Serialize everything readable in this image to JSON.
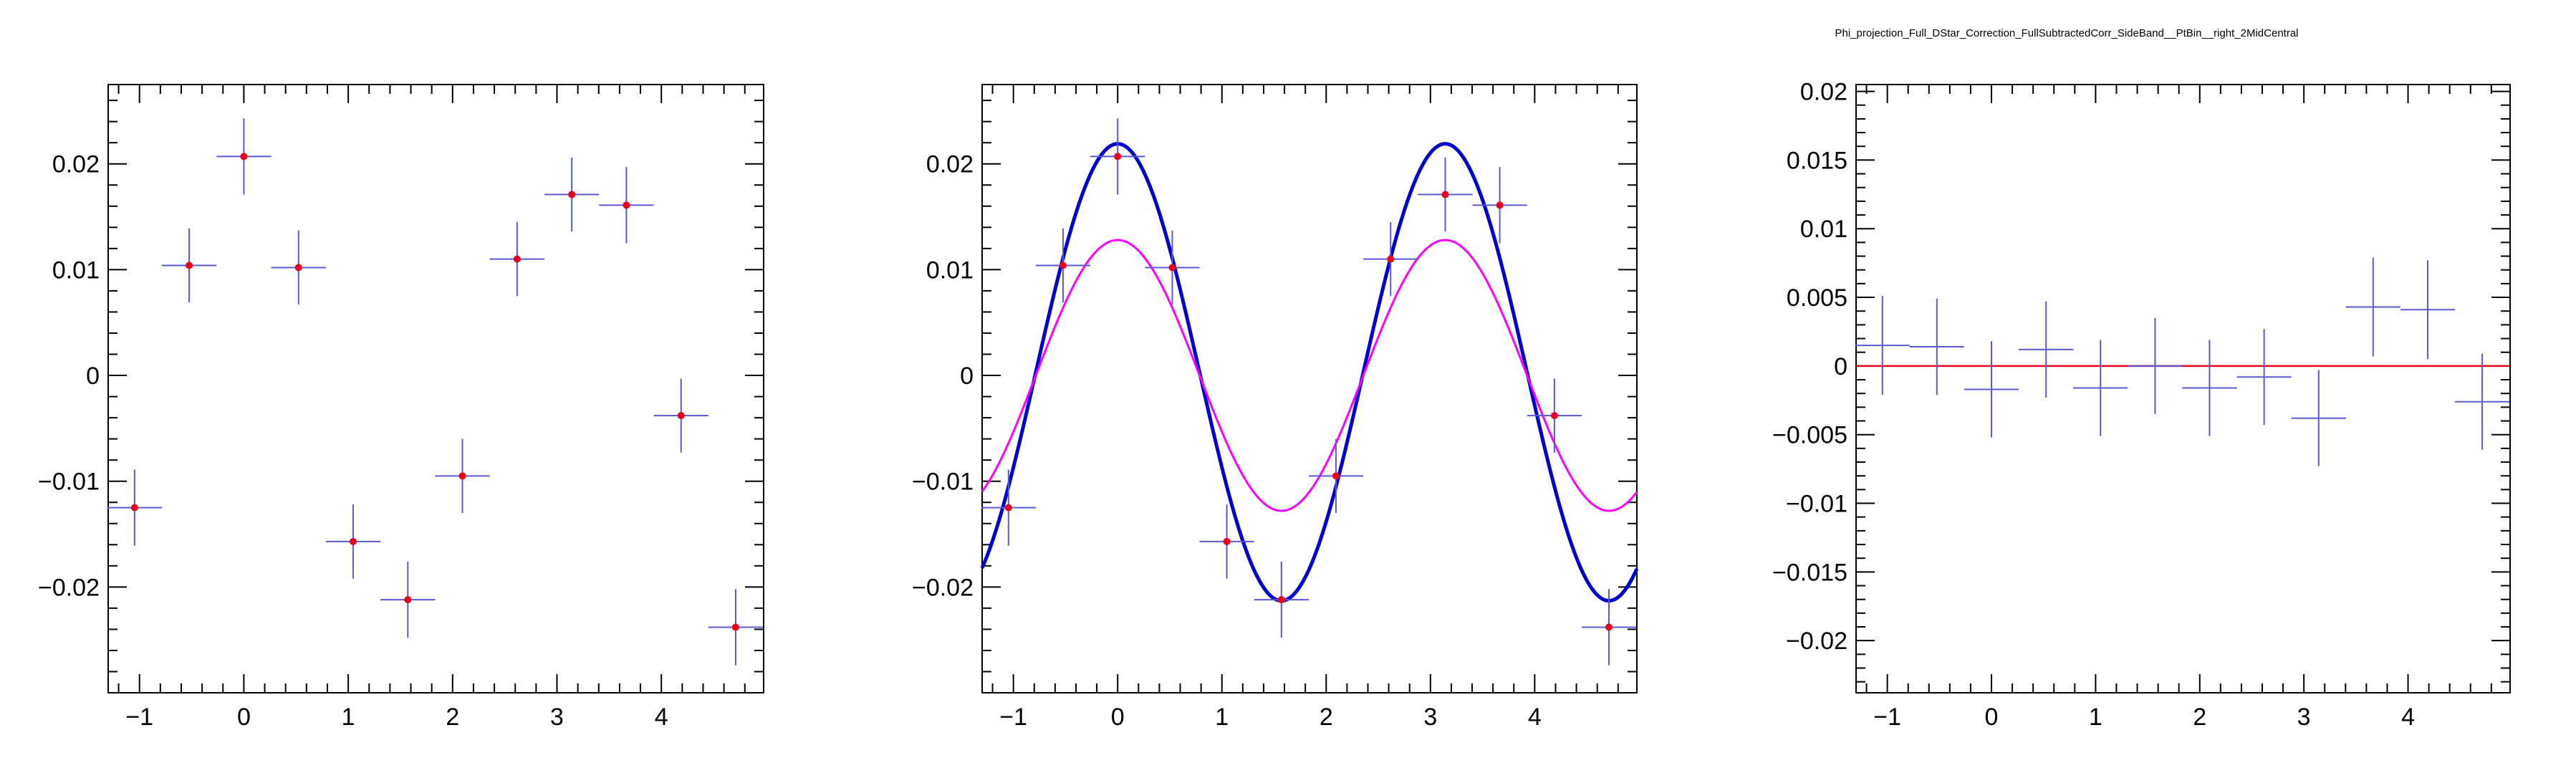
{
  "page": {
    "title": "Phi_projection_Full_DStar_Correction_FullSubtractedCorr_SideBand__PtBin__right_2MidCentral"
  },
  "colors": {
    "frame": "#000000",
    "errorbar": "#5a5ad6",
    "marker": "#e8001c",
    "fit_total": "#0000d0",
    "fit_component": "#ff00ff",
    "residual_line": "#e8001c"
  },
  "chart_data": [
    {
      "type": "scatter",
      "title": "",
      "xlabel": "",
      "ylabel": "",
      "xlim": [
        -1.3,
        4.98
      ],
      "ylim": [
        -0.03,
        0.0275
      ],
      "grid": false,
      "x_ticks": [
        -1,
        0,
        1,
        2,
        3,
        4
      ],
      "x_tick_labels": [
        "−1",
        "0",
        "1",
        "2",
        "3",
        "4"
      ],
      "y_ticks": [
        -0.02,
        -0.01,
        0,
        0.01,
        0.02
      ],
      "y_tick_labels": [
        "−0.02",
        "−0.01",
        "0",
        "0.01",
        "0.02"
      ],
      "x_half_width": 0.262,
      "series": [
        {
          "x": [
            -1.047,
            -0.524,
            0.0,
            0.524,
            1.047,
            1.571,
            2.094,
            2.618,
            3.142,
            3.665,
            4.189,
            4.712
          ],
          "y": [
            -0.0125,
            0.0104,
            0.0207,
            0.0102,
            -0.0157,
            -0.0212,
            -0.0095,
            0.011,
            0.0171,
            0.0161,
            -0.0038,
            -0.0238
          ],
          "yerr": [
            0.0036,
            0.0035,
            0.0036,
            0.0035,
            0.0035,
            0.0036,
            0.0035,
            0.0035,
            0.0035,
            0.0036,
            0.0035,
            0.0036
          ]
        }
      ]
    },
    {
      "type": "scatter",
      "title": "",
      "xlabel": "",
      "ylabel": "",
      "xlim": [
        -1.3,
        4.98
      ],
      "ylim": [
        -0.03,
        0.0275
      ],
      "grid": false,
      "x_ticks": [
        -1,
        0,
        1,
        2,
        3,
        4
      ],
      "x_tick_labels": [
        "−1",
        "0",
        "1",
        "2",
        "3",
        "4"
      ],
      "y_ticks": [
        -0.02,
        -0.01,
        0,
        0.01,
        0.02
      ],
      "y_tick_labels": [
        "−0.02",
        "−0.01",
        "0",
        "0.01",
        "0.02"
      ],
      "x_half_width": 0.262,
      "series": [
        {
          "x": [
            -1.047,
            -0.524,
            0.0,
            0.524,
            1.047,
            1.571,
            2.094,
            2.618,
            3.142,
            3.665,
            4.189,
            4.712
          ],
          "y": [
            -0.0125,
            0.0104,
            0.0207,
            0.0102,
            -0.0157,
            -0.0212,
            -0.0095,
            0.011,
            0.0171,
            0.0161,
            -0.0038,
            -0.0238
          ],
          "yerr": [
            0.0036,
            0.0035,
            0.0036,
            0.0035,
            0.0035,
            0.0036,
            0.0035,
            0.0035,
            0.0035,
            0.0036,
            0.0035,
            0.0036
          ]
        }
      ],
      "curves": [
        {
          "kind": "total_fit",
          "color_key": "fit_total",
          "offset": 0.0003,
          "a1": 0.0,
          "a2": 0.0216
        },
        {
          "kind": "component",
          "color_key": "fit_component",
          "offset": 0.0,
          "a1": 0.0,
          "a2": 0.0128
        }
      ]
    },
    {
      "type": "scatter",
      "title": "Phi_projection_Full_DStar_Correction_FullSubtractedCorr_SideBand__PtBin__right_2MidCentral",
      "xlabel": "",
      "ylabel": "",
      "xlim": [
        -1.3,
        4.98
      ],
      "ylim": [
        -0.0238,
        0.0205
      ],
      "grid": false,
      "x_ticks": [
        -1,
        0,
        1,
        2,
        3,
        4
      ],
      "x_tick_labels": [
        "−1",
        "0",
        "1",
        "2",
        "3",
        "4"
      ],
      "y_ticks": [
        -0.02,
        -0.015,
        -0.01,
        -0.005,
        0,
        0.005,
        0.01,
        0.015,
        0.02
      ],
      "y_tick_labels": [
        "−0.02",
        "−0.015",
        "−0.01",
        "−0.005",
        "0",
        "0.005",
        "0.01",
        "0.015",
        "0.02"
      ],
      "x_half_width": 0.262,
      "series": [
        {
          "x": [
            -1.047,
            -0.524,
            0.0,
            0.524,
            1.047,
            1.571,
            2.094,
            2.618,
            3.142,
            3.665,
            4.189,
            4.712
          ],
          "y": [
            0.0015,
            0.0014,
            -0.0017,
            0.0012,
            -0.0016,
            0.0,
            -0.0016,
            -0.0008,
            -0.0038,
            0.0043,
            0.0041,
            -0.0026
          ],
          "yerr": [
            0.0036,
            0.0035,
            0.0035,
            0.0035,
            0.0035,
            0.0035,
            0.0035,
            0.0035,
            0.0035,
            0.0036,
            0.0036,
            0.0035
          ]
        }
      ],
      "reference_line": 0
    }
  ]
}
